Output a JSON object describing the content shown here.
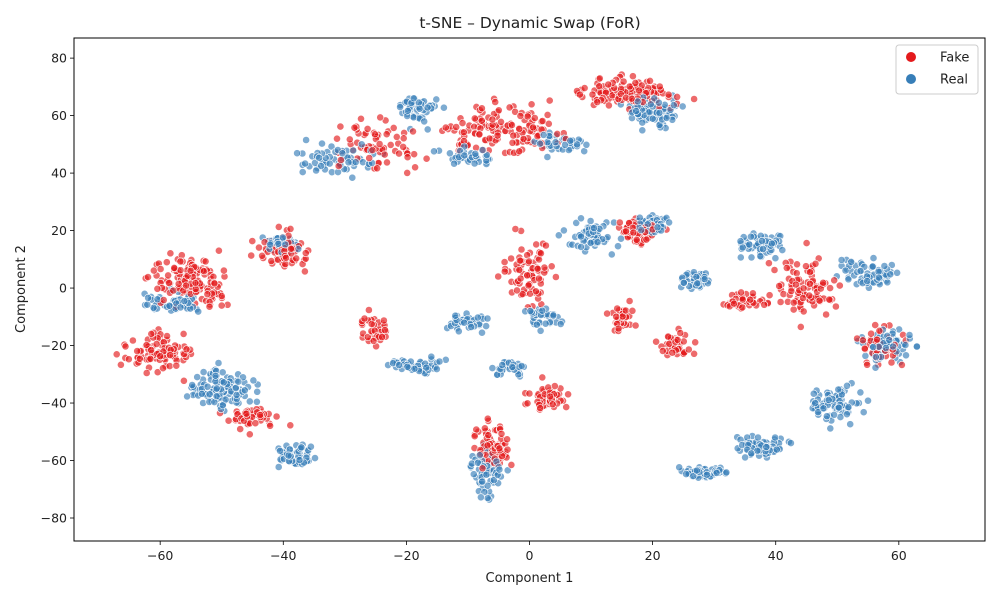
{
  "chart_data": {
    "type": "scatter",
    "title": "t-SNE – Dynamic Swap (FoR)",
    "xlabel": "Component 1",
    "ylabel": "Component 2",
    "xlim": [
      -74,
      74
    ],
    "ylim": [
      -88,
      87
    ],
    "xticks": [
      -60,
      -40,
      -20,
      0,
      20,
      40,
      60
    ],
    "yticks": [
      -80,
      -60,
      -40,
      -20,
      0,
      20,
      40,
      60,
      80
    ],
    "grid": false,
    "legend_position": "top-right",
    "point_opacity": 0.65,
    "series": [
      {
        "name": "Fake",
        "color": "#e41a1c",
        "clusters": [
          {
            "cx": 16,
            "cy": 68,
            "rx": 12,
            "ry": 7,
            "n": 130
          },
          {
            "cx": -5,
            "cy": 55,
            "rx": 16,
            "ry": 13,
            "n": 140
          },
          {
            "cx": -25,
            "cy": 50,
            "rx": 10,
            "ry": 12,
            "n": 70
          },
          {
            "cx": -55,
            "cy": 3,
            "rx": 10,
            "ry": 12,
            "n": 140
          },
          {
            "cx": -60,
            "cy": -22,
            "rx": 8,
            "ry": 10,
            "n": 90
          },
          {
            "cx": -40,
            "cy": 12,
            "rx": 6,
            "ry": 10,
            "n": 80
          },
          {
            "cx": -45,
            "cy": -45,
            "rx": 6,
            "ry": 6,
            "n": 50
          },
          {
            "cx": -6,
            "cy": -55,
            "rx": 4,
            "ry": 14,
            "n": 80
          },
          {
            "cx": 3,
            "cy": -38,
            "rx": 5,
            "ry": 7,
            "n": 60
          },
          {
            "cx": 0,
            "cy": 5,
            "rx": 6,
            "ry": 18,
            "n": 80
          },
          {
            "cx": 18,
            "cy": 20,
            "rx": 6,
            "ry": 7,
            "n": 60
          },
          {
            "cx": 24,
            "cy": -20,
            "rx": 4,
            "ry": 7,
            "n": 45
          },
          {
            "cx": 35,
            "cy": -5,
            "rx": 5,
            "ry": 5,
            "n": 40
          },
          {
            "cx": 45,
            "cy": 0,
            "rx": 8,
            "ry": 15,
            "n": 90
          },
          {
            "cx": 57,
            "cy": -20,
            "rx": 5,
            "ry": 10,
            "n": 50
          },
          {
            "cx": 15,
            "cy": -10,
            "rx": 3,
            "ry": 8,
            "n": 35
          },
          {
            "cx": -25,
            "cy": -15,
            "rx": 4,
            "ry": 8,
            "n": 40
          }
        ]
      },
      {
        "name": "Real",
        "color": "#377eb8",
        "clusters": [
          {
            "cx": 20,
            "cy": 62,
            "rx": 8,
            "ry": 8,
            "n": 80
          },
          {
            "cx": -18,
            "cy": 62,
            "rx": 6,
            "ry": 8,
            "n": 50
          },
          {
            "cx": -30,
            "cy": 45,
            "rx": 10,
            "ry": 8,
            "n": 60
          },
          {
            "cx": -10,
            "cy": 45,
            "rx": 6,
            "ry": 6,
            "n": 40
          },
          {
            "cx": 5,
            "cy": 50,
            "rx": 6,
            "ry": 6,
            "n": 40
          },
          {
            "cx": -50,
            "cy": -35,
            "rx": 8,
            "ry": 10,
            "n": 110
          },
          {
            "cx": -38,
            "cy": -58,
            "rx": 5,
            "ry": 6,
            "n": 55
          },
          {
            "cx": -58,
            "cy": -5,
            "rx": 6,
            "ry": 6,
            "n": 60
          },
          {
            "cx": -40,
            "cy": 15,
            "rx": 4,
            "ry": 5,
            "n": 40
          },
          {
            "cx": -18,
            "cy": -27,
            "rx": 6,
            "ry": 4,
            "n": 50
          },
          {
            "cx": -10,
            "cy": -12,
            "rx": 5,
            "ry": 5,
            "n": 40
          },
          {
            "cx": -7,
            "cy": -65,
            "rx": 4,
            "ry": 12,
            "n": 60
          },
          {
            "cx": -3,
            "cy": -28,
            "rx": 4,
            "ry": 4,
            "n": 30
          },
          {
            "cx": 10,
            "cy": 18,
            "rx": 6,
            "ry": 8,
            "n": 60
          },
          {
            "cx": 20,
            "cy": 22,
            "rx": 4,
            "ry": 5,
            "n": 50
          },
          {
            "cx": 28,
            "cy": -64,
            "rx": 6,
            "ry": 3,
            "n": 60
          },
          {
            "cx": 38,
            "cy": -55,
            "rx": 7,
            "ry": 6,
            "n": 70
          },
          {
            "cx": 50,
            "cy": -40,
            "rx": 6,
            "ry": 10,
            "n": 80
          },
          {
            "cx": 58,
            "cy": -20,
            "rx": 6,
            "ry": 10,
            "n": 70
          },
          {
            "cx": 55,
            "cy": 5,
            "rx": 7,
            "ry": 8,
            "n": 60
          },
          {
            "cx": 38,
            "cy": 15,
            "rx": 6,
            "ry": 6,
            "n": 60
          },
          {
            "cx": 2,
            "cy": -10,
            "rx": 4,
            "ry": 6,
            "n": 35
          },
          {
            "cx": 27,
            "cy": 3,
            "rx": 5,
            "ry": 5,
            "n": 40
          }
        ]
      }
    ]
  }
}
